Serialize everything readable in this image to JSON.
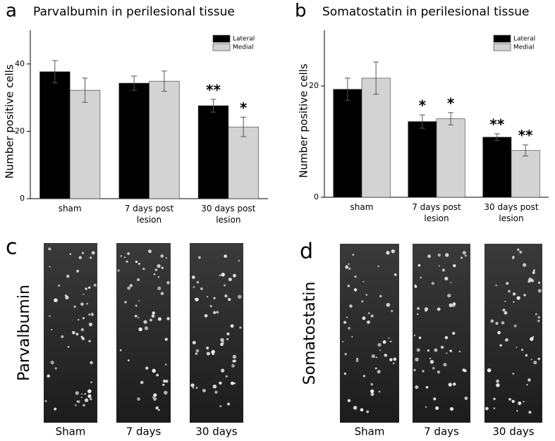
{
  "chart_data": [
    {
      "type": "bar",
      "panel_label": "a",
      "title": "Parvalbumin in perilesional tissue",
      "y_label": "Number positive cells",
      "categories": [
        "sham",
        "7 days post lesion",
        "30 days post lesion"
      ],
      "series": [
        {
          "name": "Lateral",
          "color": "#000000",
          "values": [
            37.7,
            34.3,
            27.6
          ],
          "errors": [
            3.3,
            2.1,
            1.9
          ],
          "annotations": [
            null,
            null,
            "**"
          ]
        },
        {
          "name": "Medial",
          "color": "#d3d3d3",
          "values": [
            32.2,
            34.9,
            21.3
          ],
          "errors": [
            3.6,
            3.0,
            2.9
          ],
          "annotations": [
            null,
            null,
            "*"
          ]
        }
      ],
      "ylim": [
        0,
        50
      ],
      "yticks": [
        0,
        20,
        40
      ],
      "legend": "upper right"
    },
    {
      "type": "bar",
      "panel_label": "b",
      "title": "Somatostatin in perilesional tissue",
      "y_label": "Number positive cells",
      "categories": [
        "sham",
        "7 days post lesion",
        "30 days post lesion"
      ],
      "series": [
        {
          "name": "Lateral",
          "color": "#000000",
          "values": [
            19.4,
            13.6,
            10.8
          ],
          "errors": [
            2.0,
            1.2,
            0.6
          ],
          "annotations": [
            null,
            "*",
            "**"
          ]
        },
        {
          "name": "Medial",
          "color": "#d3d3d3",
          "values": [
            21.4,
            14.1,
            8.4
          ],
          "errors": [
            2.9,
            1.1,
            1.0
          ],
          "annotations": [
            null,
            "*",
            "**"
          ]
        }
      ],
      "ylim": [
        0,
        30
      ],
      "yticks": [
        0,
        20
      ],
      "legend": "upper right"
    }
  ],
  "micrographs": [
    {
      "panel_label": "c",
      "stain": "Parvalbumin",
      "captions": [
        "Sham",
        "7 days",
        "30 days"
      ]
    },
    {
      "panel_label": "d",
      "stain": "Somatostatin",
      "captions": [
        "Sham",
        "7 days",
        "30 days"
      ]
    }
  ]
}
